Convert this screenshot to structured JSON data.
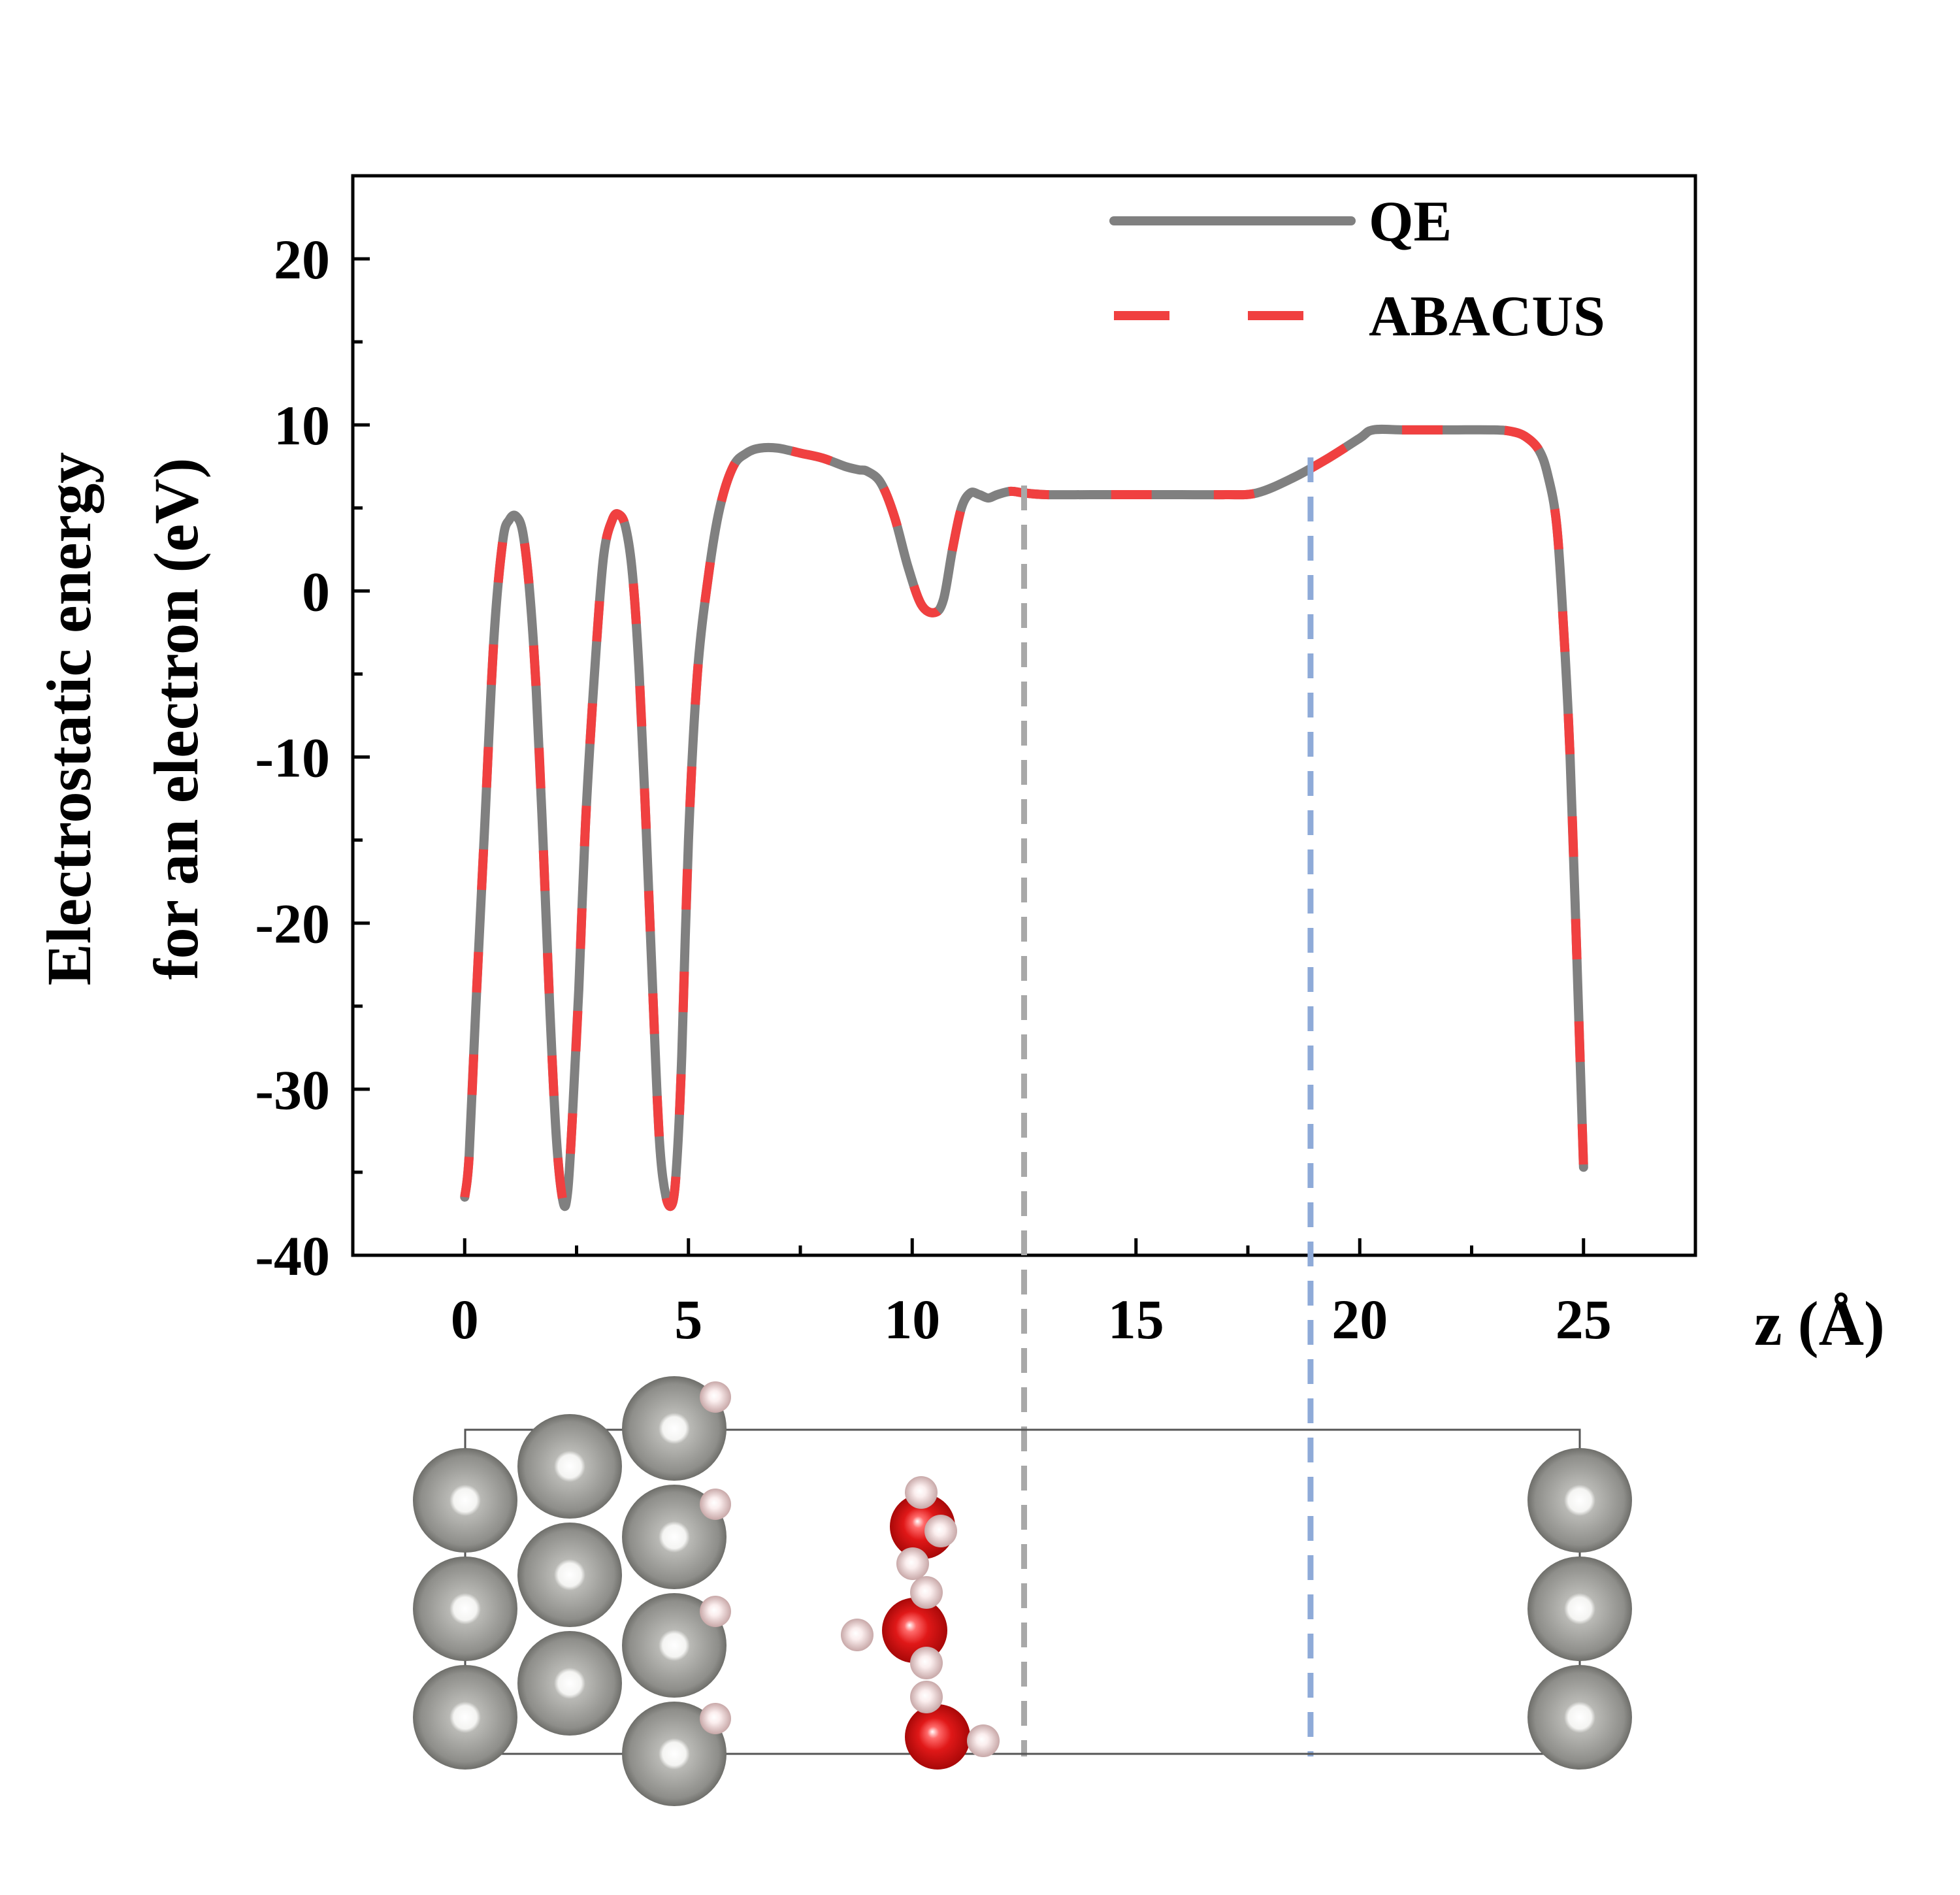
{
  "chart_data": {
    "type": "line",
    "xlabel": "z (Å)",
    "ylabel_line1": "Electrostatic energy",
    "ylabel_line2": "for an electron (eV)",
    "xlim": [
      -2.5,
      27.5
    ],
    "ylim": [
      -40,
      25
    ],
    "xticks": [
      0,
      5,
      10,
      15,
      20,
      25
    ],
    "yticks": [
      -40,
      -30,
      -20,
      -10,
      0,
      10,
      20
    ],
    "xtick_labels": [
      "0",
      "5",
      "10",
      "15",
      "20",
      "25"
    ],
    "ytick_labels": [
      "-40",
      "-30",
      "-20",
      "-10",
      "0",
      "10",
      "20"
    ],
    "legend_position": "top-right",
    "series": [
      {
        "name": "QE",
        "style": "solid",
        "color": "#808080"
      },
      {
        "name": "ABACUS",
        "style": "dashed",
        "color": "#f04040"
      }
    ],
    "x": [
      0.0,
      0.1,
      0.25,
      0.45,
      0.65,
      0.85,
      1.0,
      1.15,
      1.3,
      1.45,
      1.6,
      1.75,
      1.9,
      2.05,
      2.2,
      2.3,
      2.4,
      2.55,
      2.7,
      2.9,
      3.1,
      3.3,
      3.45,
      3.6,
      3.75,
      3.9,
      4.05,
      4.2,
      4.35,
      4.5,
      4.65,
      4.75,
      4.85,
      5.0,
      5.2,
      5.45,
      5.7,
      6.0,
      6.3,
      6.6,
      7.0,
      7.5,
      8.0,
      8.5,
      8.8,
      9.0,
      9.3,
      9.6,
      9.9,
      10.2,
      10.5,
      10.7,
      10.9,
      11.1,
      11.3,
      11.5,
      11.7,
      11.9,
      12.2,
      12.5,
      13.0,
      14.0,
      15.0,
      16.0,
      17.0,
      17.7,
      18.5,
      19.3,
      20.0,
      20.3,
      21.0,
      22.0,
      23.0,
      23.4,
      23.7,
      24.0,
      24.2,
      24.4,
      24.55,
      24.7,
      24.85,
      25.0
    ],
    "y": [
      -36.5,
      -34,
      -25,
      -14,
      -3,
      3,
      4.3,
      4.5,
      3.5,
      0,
      -6,
      -15,
      -25,
      -33,
      -36.8,
      -36.2,
      -32,
      -24,
      -14,
      -5,
      2,
      4.3,
      4.6,
      3.8,
      1,
      -5,
      -14,
      -24,
      -33,
      -36.5,
      -36.8,
      -34,
      -28,
      -15,
      -5,
      1,
      5,
      7.5,
      8.3,
      8.6,
      8.6,
      8.3,
      8,
      7.5,
      7.3,
      7.2,
      6.5,
      4.5,
      1.5,
      -0.8,
      -1.3,
      -0.5,
      2.5,
      5,
      5.9,
      5.8,
      5.6,
      5.8,
      6,
      5.9,
      5.8,
      5.8,
      5.8,
      5.8,
      5.8,
      5.9,
      6.8,
      8,
      9.2,
      9.7,
      9.7,
      9.7,
      9.7,
      9.6,
      9.3,
      8.5,
      7,
      4,
      -2,
      -10,
      -22,
      -34.7
    ],
    "vertical_markers": [
      {
        "x": 12.5,
        "color": "#a8a8a8"
      },
      {
        "x": 18.9,
        "color": "#8eaad8"
      }
    ]
  },
  "structure": {
    "atom_colors": {
      "metal": "#9a9a96",
      "oxygen": "#d81414",
      "hydrogen": "#ecd8d8"
    }
  }
}
